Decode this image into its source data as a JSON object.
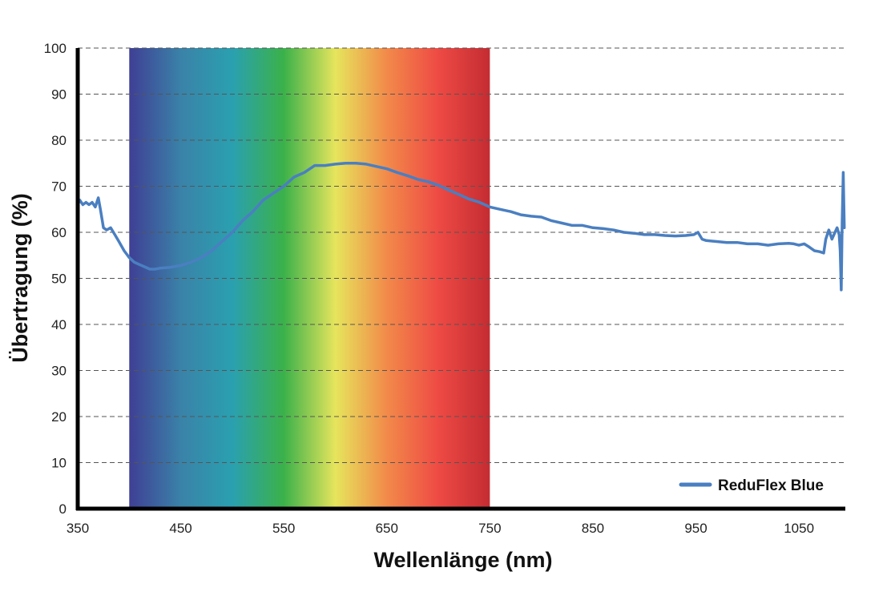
{
  "chart_data": {
    "type": "line",
    "title": "",
    "xlabel": "Wellenlänge (nm)",
    "ylabel": "Übertragung (%)",
    "xlim": [
      350,
      1095
    ],
    "ylim": [
      0,
      100
    ],
    "xticks": [
      350,
      450,
      550,
      650,
      750,
      850,
      950,
      1050
    ],
    "yticks": [
      0,
      10,
      20,
      30,
      40,
      50,
      60,
      70,
      80,
      90,
      100
    ],
    "grid": "horizontal dashed",
    "legend_position": "bottom-right",
    "spectrum_band": {
      "from": 400,
      "to": 750
    },
    "colors": {
      "line": "#4a7fc1",
      "spectrum": [
        "#3f3f95",
        "#3a82a8",
        "#2aa0b0",
        "#3bb14a",
        "#e6e55c",
        "#f28a4a",
        "#ee4a44",
        "#c42c32"
      ]
    },
    "series": [
      {
        "name": "ReduFlex Blue",
        "x": [
          350,
          352,
          355,
          358,
          361,
          364,
          367,
          370,
          372,
          375,
          378,
          382,
          386,
          390,
          395,
          400,
          405,
          410,
          415,
          420,
          425,
          430,
          440,
          450,
          460,
          470,
          480,
          490,
          500,
          510,
          520,
          530,
          540,
          550,
          560,
          570,
          580,
          590,
          600,
          610,
          620,
          630,
          640,
          650,
          660,
          670,
          680,
          690,
          700,
          710,
          720,
          730,
          740,
          750,
          760,
          770,
          780,
          790,
          800,
          810,
          820,
          830,
          840,
          850,
          860,
          870,
          880,
          890,
          900,
          910,
          920,
          930,
          940,
          948,
          952,
          956,
          960,
          970,
          980,
          990,
          1000,
          1010,
          1020,
          1030,
          1040,
          1045,
          1050,
          1055,
          1060,
          1065,
          1070,
          1074,
          1076,
          1079,
          1082,
          1085,
          1087,
          1089,
          1090,
          1091,
          1092,
          1093,
          1094
        ],
        "values": [
          66,
          67,
          66,
          66.5,
          66,
          66.5,
          65.5,
          67.5,
          65,
          61,
          60.5,
          61,
          59.5,
          58,
          56,
          54.5,
          53.5,
          53,
          52.5,
          52,
          52,
          52.2,
          52.4,
          52.8,
          53.5,
          54.5,
          56,
          58,
          60,
          62.5,
          64.5,
          67,
          68.5,
          70,
          72,
          73,
          74.5,
          74.5,
          74.8,
          75,
          75,
          74.8,
          74.3,
          73.8,
          73,
          72.3,
          71.5,
          71,
          70.2,
          69.2,
          68.2,
          67.2,
          66.5,
          65.5,
          65,
          64.5,
          63.8,
          63.5,
          63.3,
          62.5,
          62,
          61.5,
          61.5,
          61,
          60.8,
          60.5,
          60,
          59.8,
          59.5,
          59.5,
          59.3,
          59.2,
          59.3,
          59.5,
          60,
          58.5,
          58.2,
          58,
          57.8,
          57.8,
          57.5,
          57.5,
          57.2,
          57.5,
          57.6,
          57.5,
          57.2,
          57.5,
          56.8,
          56,
          55.8,
          55.5,
          58.5,
          60.5,
          58.5,
          60,
          61,
          59.5,
          56,
          47.5,
          62.5,
          73,
          61
        ]
      }
    ]
  }
}
